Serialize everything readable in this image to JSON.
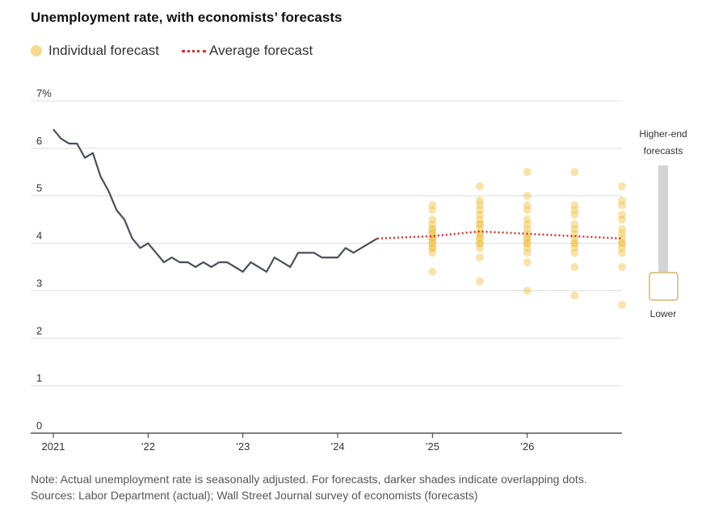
{
  "chart_data": {
    "type": "scatter",
    "title": "Unemployment rate, with economists’ forecasts",
    "legend": {
      "individual": "Individual forecast",
      "average": "Average forecast"
    },
    "yticks": [
      "7%",
      "6",
      "5",
      "4",
      "3",
      "2",
      "1",
      "0"
    ],
    "ylim": [
      0,
      7
    ],
    "xticks": [
      "2021",
      "’22",
      "’23",
      "’24",
      "’25",
      "’26"
    ],
    "xlim": [
      2021,
      2027.0
    ],
    "grid": true,
    "colors": {
      "actual": "#4a4f5c",
      "forecast": "#f0c048",
      "average": "#d9302c"
    },
    "series": [
      {
        "name": "Actual",
        "x": [
          2021.0,
          2021.083,
          2021.167,
          2021.25,
          2021.333,
          2021.417,
          2021.5,
          2021.583,
          2021.667,
          2021.75,
          2021.833,
          2021.917,
          2022.0,
          2022.083,
          2022.167,
          2022.25,
          2022.333,
          2022.417,
          2022.5,
          2022.583,
          2022.667,
          2022.75,
          2022.833,
          2022.917,
          2023.0,
          2023.083,
          2023.167,
          2023.25,
          2023.333,
          2023.417,
          2023.5,
          2023.583,
          2023.667,
          2023.75,
          2023.833,
          2023.917,
          2024.0,
          2024.083,
          2024.167,
          2024.25,
          2024.333,
          2024.417
        ],
        "y": [
          6.4,
          6.2,
          6.1,
          6.1,
          5.8,
          5.9,
          5.4,
          5.1,
          4.7,
          4.5,
          4.1,
          3.9,
          4.0,
          3.8,
          3.6,
          3.7,
          3.6,
          3.6,
          3.5,
          3.6,
          3.5,
          3.6,
          3.6,
          3.5,
          3.4,
          3.6,
          3.5,
          3.4,
          3.7,
          3.6,
          3.5,
          3.8,
          3.8,
          3.8,
          3.7,
          3.7,
          3.7,
          3.9,
          3.8,
          3.9,
          4.0,
          4.1
        ]
      },
      {
        "name": "Average forecast",
        "x": [
          2024.417,
          2025.0,
          2025.5,
          2026.0,
          2026.5,
          2027.0
        ],
        "y": [
          4.1,
          4.15,
          4.25,
          4.2,
          4.15,
          4.1
        ]
      },
      {
        "name": "Individual forecast",
        "points": [
          {
            "x": 2025.0,
            "values": [
              4.8,
              4.7,
              4.5,
              4.4,
              4.3,
              4.3,
              4.2,
              4.2,
              4.1,
              4.1,
              4.1,
              4.0,
              4.0,
              3.9,
              3.9,
              3.8,
              3.4
            ]
          },
          {
            "x": 2025.5,
            "values": [
              5.2,
              4.9,
              4.8,
              4.7,
              4.6,
              4.5,
              4.4,
              4.4,
              4.3,
              4.2,
              4.2,
              4.1,
              4.1,
              4.0,
              4.0,
              3.9,
              3.7,
              3.2
            ]
          },
          {
            "x": 2026.0,
            "values": [
              5.5,
              5.0,
              4.8,
              4.7,
              4.5,
              4.4,
              4.3,
              4.2,
              4.1,
              4.1,
              4.0,
              4.0,
              3.9,
              3.8,
              3.6,
              3.0
            ]
          },
          {
            "x": 2026.5,
            "values": [
              5.5,
              4.8,
              4.7,
              4.6,
              4.4,
              4.3,
              4.2,
              4.1,
              4.0,
              4.0,
              3.9,
              3.8,
              3.5,
              2.9
            ]
          },
          {
            "x": 2027.0,
            "values": [
              5.2,
              4.9,
              4.8,
              4.6,
              4.5,
              4.3,
              4.2,
              4.1,
              4.0,
              4.0,
              3.9,
              3.8,
              3.5,
              2.7
            ]
          }
        ]
      }
    ]
  },
  "scale_legend": {
    "top": "Higher-end",
    "top2": "forecasts",
    "bottom": "Lower"
  },
  "note": "Note: Actual unemployment rate is seasonally adjusted. For forecasts, darker shades indicate overlapping dots.",
  "sources": "Sources: Labor Department (actual); Wall Street Journal survey of economists (forecasts)"
}
